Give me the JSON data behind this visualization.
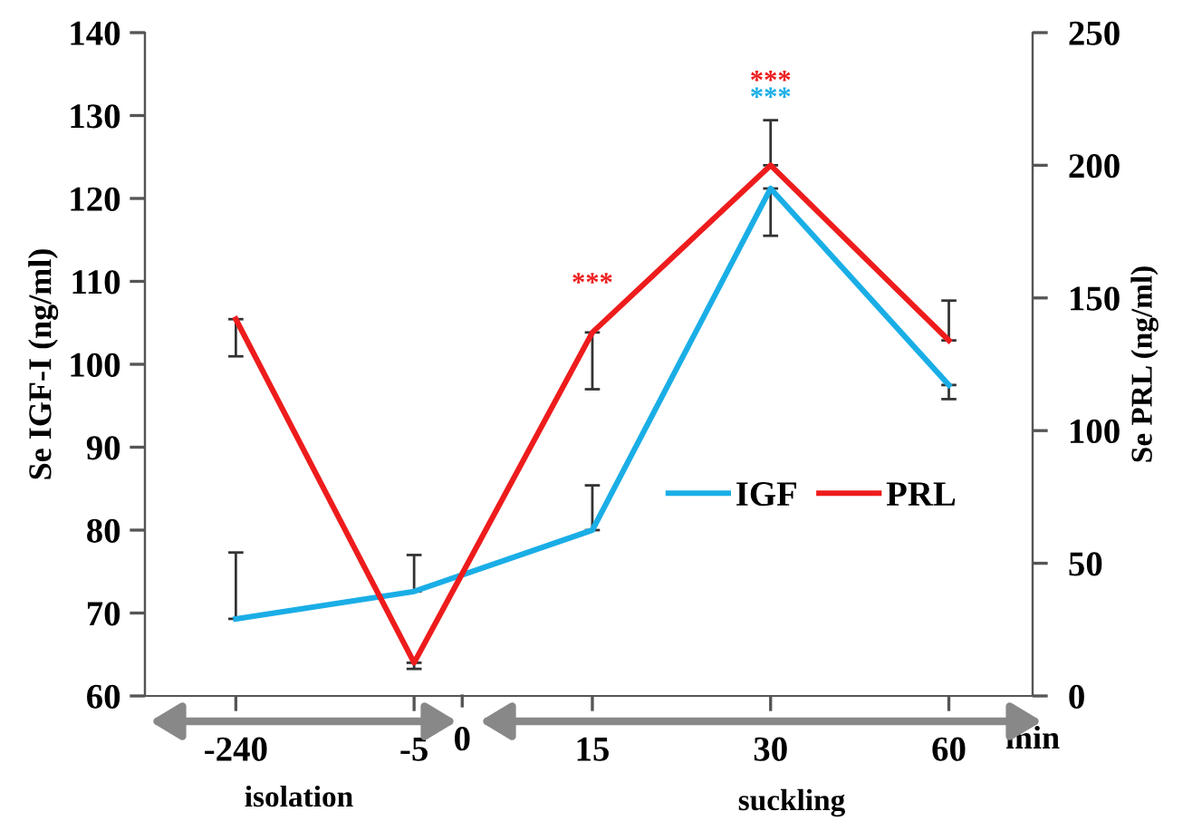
{
  "chart_data": {
    "type": "line",
    "ylabel": "Se IGF-I (ng/ml)",
    "y2label": "Se PRL (ng/ml)",
    "categories": [
      "-240",
      "-5",
      "15",
      "30",
      "60"
    ],
    "series": [
      {
        "name": "IGF",
        "color": "#1aaee6",
        "values": [
          69.3,
          72.6,
          80,
          121.2,
          97.5
        ],
        "errors": [
          [
            69.3,
            77.3
          ],
          [
            72.6,
            77
          ],
          [
            80,
            85.4
          ],
          [
            115.5,
            121.2
          ],
          [
            95.8,
            97.5
          ]
        ]
      },
      {
        "name": "PRL",
        "color": "#ee1c1c",
        "axis": "y2",
        "values": [
          142,
          12.5,
          137,
          200,
          134
        ],
        "errors": [
          [
            128,
            142
          ],
          [
            10.2,
            12.5
          ],
          [
            115.6,
            137
          ],
          [
            200,
            217
          ],
          [
            134,
            149
          ]
        ]
      }
    ],
    "ylim": [
      60,
      140
    ],
    "yticks": [
      60,
      70,
      80,
      90,
      100,
      110,
      120,
      130,
      140
    ],
    "y2lim": [
      0,
      250
    ],
    "y2ticks": [
      0,
      50,
      100,
      150,
      200,
      250
    ],
    "legend": "right",
    "grid": false,
    "marker": "none",
    "line_style": "solid",
    "annotations": [
      "***",
      "***",
      "***",
      "0",
      "min",
      "isolation",
      "suckling"
    ]
  }
}
